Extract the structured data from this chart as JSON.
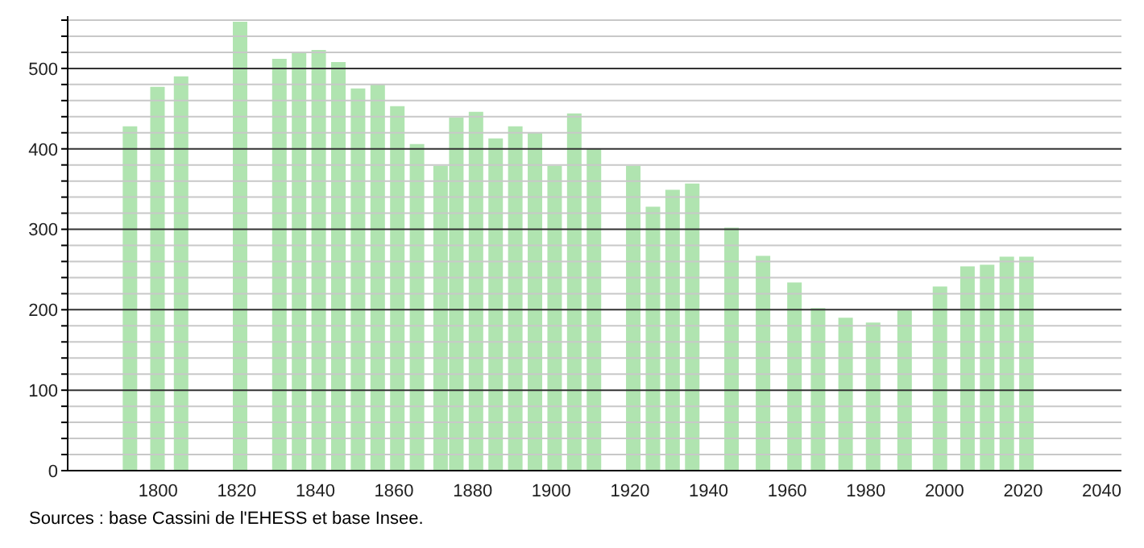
{
  "chart_data": {
    "type": "bar",
    "color": "#b0e4b0",
    "x": [
      1793,
      1800,
      1806,
      1821,
      1831,
      1836,
      1841,
      1846,
      1851,
      1856,
      1861,
      1866,
      1872,
      1876,
      1881,
      1886,
      1891,
      1896,
      1901,
      1906,
      1911,
      1921,
      1926,
      1931,
      1936,
      1946,
      1954,
      1962,
      1968,
      1975,
      1982,
      1990,
      1999,
      2006,
      2011,
      2016,
      2021
    ],
    "values": [
      428,
      477,
      490,
      558,
      512,
      521,
      523,
      508,
      475,
      480,
      453,
      406,
      379,
      439,
      446,
      413,
      428,
      420,
      379,
      444,
      400,
      379,
      328,
      349,
      357,
      302,
      267,
      234,
      202,
      190,
      184,
      199,
      229,
      254,
      256,
      266,
      266
    ],
    "xlim": [
      1777,
      2045
    ],
    "xticks": [
      1800,
      1820,
      1840,
      1860,
      1880,
      1900,
      1920,
      1940,
      1960,
      1980,
      2000,
      2020,
      2040
    ],
    "ylim": [
      0,
      565
    ],
    "yticks": [
      0,
      {
        "value": 20,
        "label": null
      },
      {
        "value": 40,
        "label": null
      },
      {
        "value": 60,
        "label": null
      },
      {
        "value": 80,
        "label": null
      },
      100,
      {
        "value": 120,
        "label": null
      },
      {
        "value": 140,
        "label": null
      },
      {
        "value": 160,
        "label": null
      },
      {
        "value": 180,
        "label": null
      },
      200,
      {
        "value": 220,
        "label": null
      },
      {
        "value": 240,
        "label": null
      },
      {
        "value": 260,
        "label": null
      },
      {
        "value": 280,
        "label": null
      },
      300,
      {
        "value": 320,
        "label": null
      },
      {
        "value": 340,
        "label": null
      },
      {
        "value": 360,
        "label": null
      },
      {
        "value": 380,
        "label": null
      },
      400,
      {
        "value": 420,
        "label": null
      },
      {
        "value": 440,
        "label": null
      },
      {
        "value": 460,
        "label": null
      },
      {
        "value": 480,
        "label": null
      },
      500,
      {
        "value": 520,
        "label": null
      },
      {
        "value": 540,
        "label": null
      },
      {
        "value": 560,
        "label": null
      }
    ],
    "grid": "y",
    "annotations": [
      "Sources : base Cassini de l'EHESS et base Insee."
    ]
  }
}
